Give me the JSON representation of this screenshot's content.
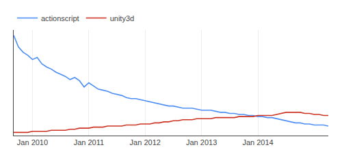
{
  "chart_data": {
    "type": "line",
    "categories": [
      null,
      null,
      null,
      null,
      "Jan 2010",
      null,
      null,
      null,
      null,
      null,
      null,
      null,
      null,
      null,
      null,
      null,
      "Jan 2011",
      null,
      null,
      null,
      null,
      null,
      null,
      null,
      null,
      null,
      null,
      null,
      "Jan 2012",
      null,
      null,
      null,
      null,
      null,
      null,
      null,
      null,
      null,
      null,
      null,
      "Jan 2013",
      null,
      null,
      null,
      null,
      null,
      null,
      null,
      null,
      null,
      null,
      null,
      "Jan 2014",
      null,
      null,
      null,
      null,
      null,
      null,
      null,
      null,
      null,
      null,
      null,
      null,
      null,
      null,
      null
    ],
    "series": [
      {
        "name": "actionscript",
        "color": "#4d8ef5",
        "values": [
          95,
          84,
          79,
          76,
          72,
          74,
          68,
          65,
          63,
          60,
          58,
          56,
          53,
          55,
          52,
          46,
          50,
          47,
          44,
          43,
          42,
          40,
          39,
          38,
          36,
          35,
          35,
          34,
          33,
          32,
          31,
          30,
          29,
          28,
          28,
          27,
          26,
          26,
          26,
          25,
          24,
          24,
          24,
          23,
          22,
          22,
          21,
          21,
          20,
          20,
          19,
          19,
          18,
          18,
          17,
          17,
          16,
          15,
          14,
          13,
          12,
          12,
          11,
          11,
          10,
          10,
          10,
          9
        ]
      },
      {
        "name": "unity3d",
        "color": "#cc3322",
        "values": [
          3,
          3,
          3,
          3,
          4,
          4,
          4,
          4,
          5,
          5,
          5,
          5,
          6,
          6,
          7,
          7,
          7,
          8,
          8,
          8,
          9,
          9,
          9,
          9,
          10,
          10,
          10,
          11,
          11,
          11,
          12,
          12,
          13,
          13,
          14,
          14,
          15,
          15,
          15,
          16,
          16,
          16,
          16,
          17,
          17,
          17,
          17,
          17,
          18,
          18,
          18,
          18,
          19,
          19,
          19,
          19,
          20,
          21,
          22,
          22,
          22,
          22,
          21,
          21,
          20,
          20,
          19,
          19
        ]
      }
    ],
    "ylim": [
      0,
      100
    ],
    "grid": true,
    "legend": "upper left",
    "tick_labels": "x"
  }
}
